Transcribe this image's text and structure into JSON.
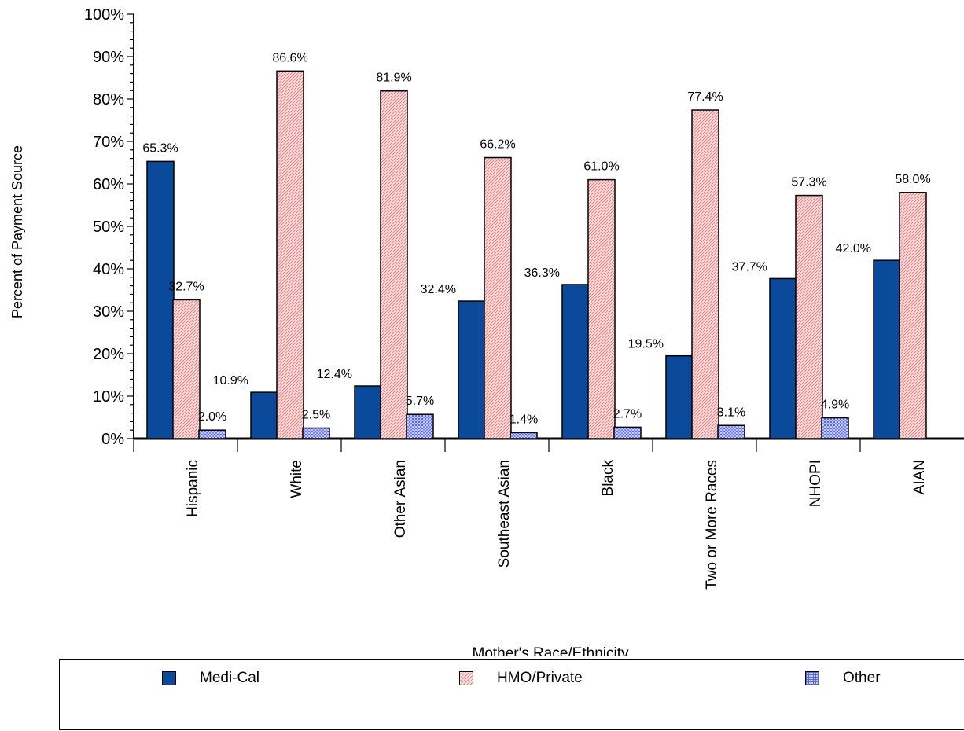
{
  "chart_data": {
    "type": "bar",
    "xlabel": "Mother's Race/Ethnicity",
    "ylabel": "Percent of Payment Source",
    "ylim": [
      0,
      100
    ],
    "y_ticks": [
      "0%",
      "10%",
      "20%",
      "30%",
      "40%",
      "50%",
      "60%",
      "70%",
      "80%",
      "90%",
      "100%"
    ],
    "categories": [
      "Hispanic",
      "White",
      "Other Asian",
      "Southeast Asian",
      "Black",
      "Two or More Races",
      "NHOPI",
      "AIAN"
    ],
    "series": [
      {
        "name": "Medi-Cal",
        "values": [
          65.3,
          10.9,
          12.4,
          32.4,
          36.3,
          19.5,
          37.7,
          42.0
        ],
        "labels": [
          "65.3%",
          "10.9%",
          "12.4%",
          "32.4%",
          "36.3%",
          "19.5%",
          "37.7%",
          "42.0%"
        ],
        "color": "#0b4a9a"
      },
      {
        "name": "HMO/Private",
        "values": [
          32.7,
          86.6,
          81.9,
          66.2,
          61.0,
          77.4,
          57.3,
          58.0
        ],
        "labels": [
          "32.7%",
          "86.6%",
          "81.9%",
          "66.2%",
          "61.0%",
          "77.4%",
          "57.3%",
          "58.0%"
        ],
        "color": "#f2a5a5"
      },
      {
        "name": "Other",
        "values": [
          2.0,
          2.5,
          5.7,
          1.4,
          2.7,
          3.1,
          4.9,
          null
        ],
        "labels": [
          "2.0%",
          "2.5%",
          "5.7%",
          "1.4%",
          "2.7%",
          "3.1%",
          "4.9%",
          ""
        ],
        "color": "#8f9bf5"
      }
    ],
    "legend_position": "bottom",
    "grid": false
  }
}
